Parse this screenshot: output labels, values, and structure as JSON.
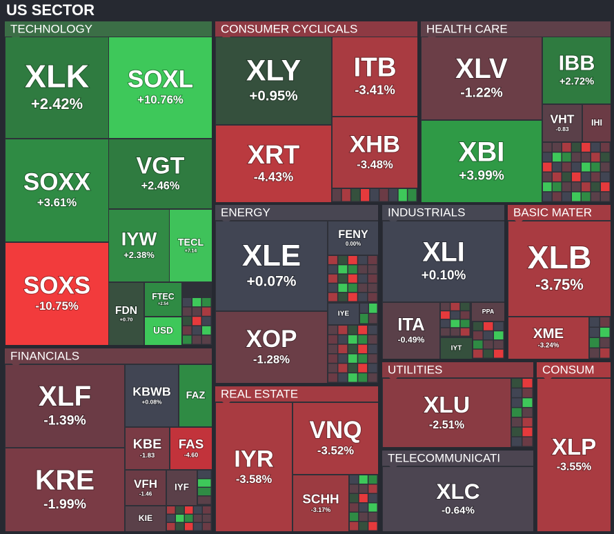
{
  "header": {
    "title": "US SECTOR"
  },
  "sectors": [
    {
      "name": "TECHNOLOGY",
      "color": "#3b6e46",
      "tiles": [
        {
          "ticker": "XLK",
          "change": "+2.42%",
          "color": "#2f7b40"
        },
        {
          "ticker": "SOXL",
          "change": "+10.76%",
          "color": "#3ec85a"
        },
        {
          "ticker": "SOXX",
          "change": "+3.61%",
          "color": "#2f8b44"
        },
        {
          "ticker": "VGT",
          "change": "+2.46%",
          "color": "#2f7b40"
        },
        {
          "ticker": "SOXS",
          "change": "-10.75%",
          "color": "#f23b3c"
        },
        {
          "ticker": "IYW",
          "change": "+2.38%",
          "color": "#318b45"
        },
        {
          "ticker": "TECL",
          "change": "+7.14",
          "color": "#3fc25a"
        },
        {
          "ticker": "FDN",
          "change": "+0.70",
          "color": "#38503f"
        },
        {
          "ticker": "FTEC",
          "change": "+2.54",
          "color": "#2f8b44"
        },
        {
          "ticker": "USD",
          "color": "#3ec85a"
        }
      ]
    },
    {
      "name": "FINANCIALS",
      "color": "#6b3e47",
      "tiles": [
        {
          "ticker": "XLF",
          "change": "-1.39%",
          "color": "#6b3b45"
        },
        {
          "ticker": "KRE",
          "change": "-1.99%",
          "color": "#7a3b45"
        },
        {
          "ticker": "KBWB",
          "change": "+0.08%",
          "color": "#414553"
        },
        {
          "ticker": "FAZ",
          "color": "#2f8b44"
        },
        {
          "ticker": "KBE",
          "change": "-1.83",
          "color": "#7a3b45"
        },
        {
          "ticker": "FAS",
          "change": "-4.60",
          "color": "#c2333b"
        },
        {
          "ticker": "VFH",
          "change": "-1.46",
          "color": "#6b3b45"
        },
        {
          "ticker": "IYF",
          "color": "#5a4049"
        },
        {
          "ticker": "KIE",
          "color": "#5a4049"
        }
      ]
    },
    {
      "name": "CONSUMER CYCLICALS",
      "color": "#8e3a43",
      "tiles": [
        {
          "ticker": "XLY",
          "change": "+0.95%",
          "color": "#35503d"
        },
        {
          "ticker": "ITB",
          "change": "-3.41%",
          "color": "#a93b41"
        },
        {
          "ticker": "XRT",
          "change": "-4.43%",
          "color": "#ba3a3f"
        },
        {
          "ticker": "XHB",
          "change": "-3.48%",
          "color": "#a93b41"
        }
      ]
    },
    {
      "name": "HEALTH CARE",
      "color": "#5e4049",
      "tiles": [
        {
          "ticker": "XLV",
          "change": "-1.22%",
          "color": "#6b3e47"
        },
        {
          "ticker": "IBB",
          "change": "+2.72%",
          "color": "#2f7b40"
        },
        {
          "ticker": "VHT",
          "change": "-0.83",
          "color": "#5a4049"
        },
        {
          "ticker": "IHI",
          "color": "#6b3b45"
        },
        {
          "ticker": "XBI",
          "change": "+3.99%",
          "color": "#2f9a46"
        }
      ]
    },
    {
      "name": "ENERGY",
      "color": "#484652",
      "tiles": [
        {
          "ticker": "XLE",
          "change": "+0.07%",
          "color": "#414553"
        },
        {
          "ticker": "FENY",
          "change": "0.00%",
          "color": "#414553"
        },
        {
          "ticker": "XOP",
          "change": "-1.28%",
          "color": "#6b3e47"
        },
        {
          "ticker": "IYE",
          "color": "#414553"
        }
      ]
    },
    {
      "name": "INDUSTRIALS",
      "color": "#464753",
      "tiles": [
        {
          "ticker": "XLI",
          "change": "+0.10%",
          "color": "#414553"
        },
        {
          "ticker": "ITA",
          "change": "-0.49%",
          "color": "#5a4049"
        },
        {
          "ticker": "PPA",
          "color": "#5a4049"
        },
        {
          "ticker": "IYT",
          "color": "#35503d"
        }
      ]
    },
    {
      "name": "BASIC MATER",
      "color": "#a33b42",
      "tiles": [
        {
          "ticker": "XLB",
          "change": "-3.75%",
          "color": "#a93b41"
        },
        {
          "ticker": "XME",
          "change": "-3.24%",
          "color": "#a93b41"
        }
      ]
    },
    {
      "name": "UTILITIES",
      "color": "#8a3b43",
      "tiles": [
        {
          "ticker": "XLU",
          "change": "-2.51%",
          "color": "#8a3b43"
        }
      ]
    },
    {
      "name": "TELECOMMUNICATI",
      "color": "#4c4551",
      "tiles": [
        {
          "ticker": "XLC",
          "change": "-0.64%",
          "color": "#4c4551"
        }
      ]
    },
    {
      "name": "CONSUM",
      "color": "#a93b41",
      "tiles": [
        {
          "ticker": "XLP",
          "change": "-3.55%",
          "color": "#a93b41"
        }
      ]
    },
    {
      "name": "REAL ESTATE",
      "color": "#a33b42",
      "tiles": [
        {
          "ticker": "IYR",
          "change": "-3.58%",
          "color": "#a93b41"
        },
        {
          "ticker": "VNQ",
          "change": "-3.52%",
          "color": "#a93b41"
        },
        {
          "ticker": "SCHH",
          "change": "-3.17%",
          "color": "#9c3b41"
        }
      ]
    }
  ]
}
